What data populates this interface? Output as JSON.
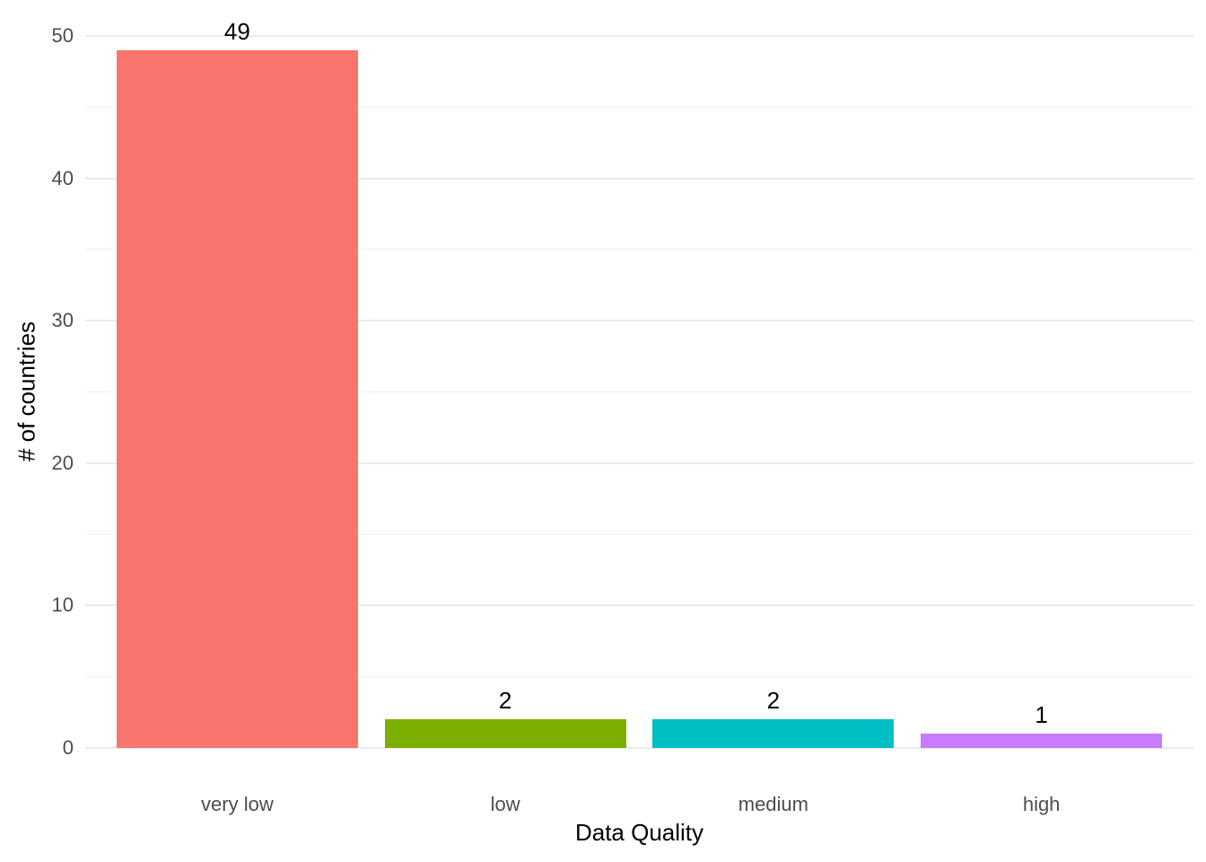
{
  "chart_data": {
    "type": "bar",
    "title": "",
    "xlabel": "Data Quality",
    "ylabel": "# of countries",
    "categories": [
      "very low",
      "low",
      "medium",
      "high"
    ],
    "values": [
      49,
      2,
      2,
      1
    ],
    "data_labels": [
      "49",
      "2",
      "2",
      "1"
    ],
    "bar_colors": [
      "#F8766D",
      "#7CAE00",
      "#00BFC4",
      "#C77CFF"
    ],
    "ylim": [
      0,
      50
    ],
    "yticks": [
      "0",
      "10",
      "20",
      "30",
      "40",
      "50"
    ],
    "ytick_values": [
      0,
      10,
      20,
      30,
      40,
      50
    ],
    "minor_tick_values": [
      5,
      15,
      25,
      35,
      45
    ],
    "grid": "horizontal major and minor gridlines, no axis lines, no ticks",
    "legend": "none",
    "background_color": "#FFFFFF",
    "grid_color": "#EBEBEB",
    "tick_label_color": "#4D4D4D",
    "axis_title_color": "#000000"
  }
}
